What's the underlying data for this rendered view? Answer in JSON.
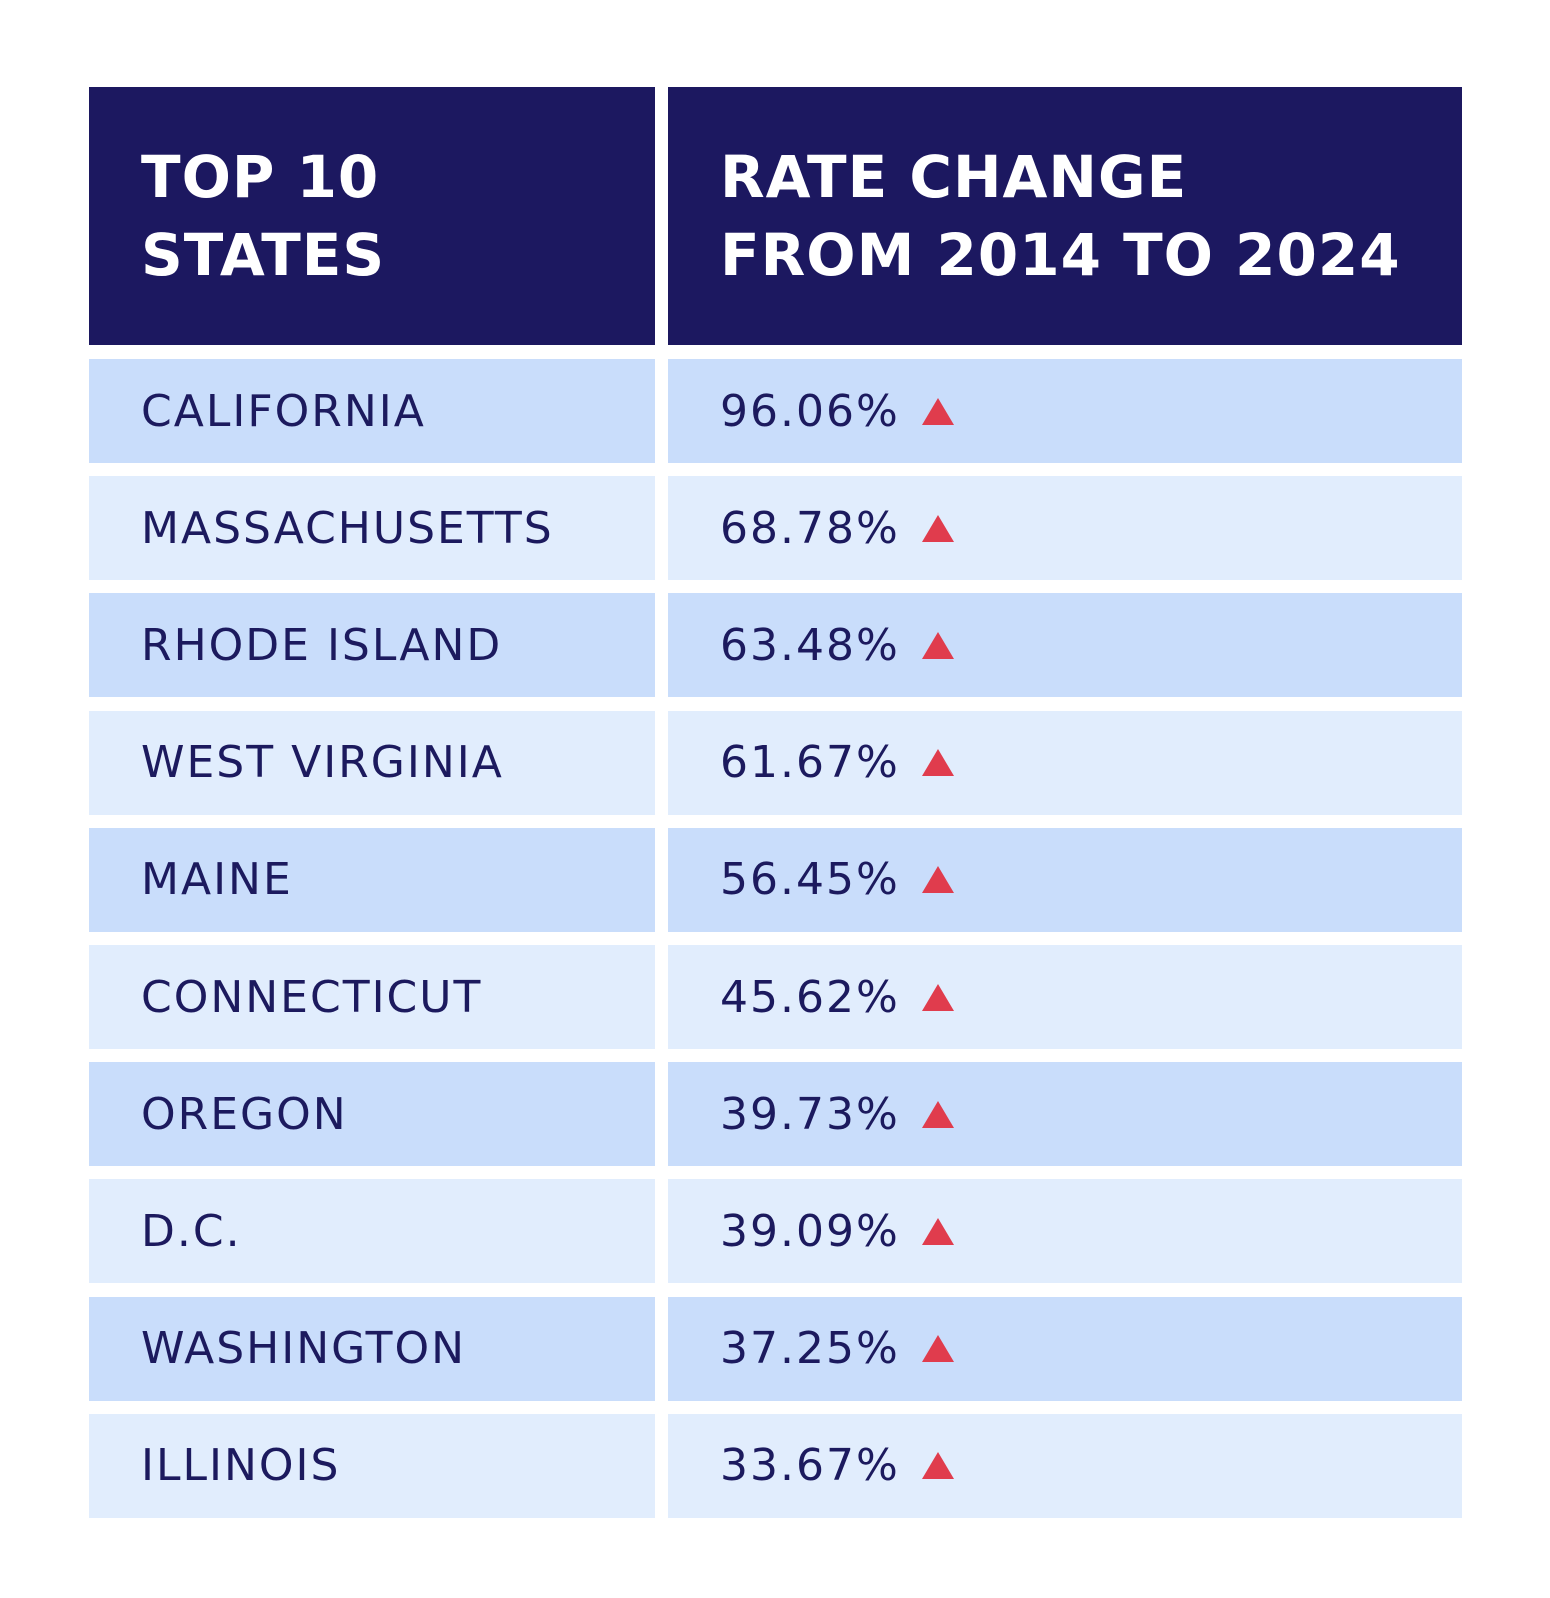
{
  "chart_data": {
    "type": "table",
    "columns": [
      "TOP 10 STATES",
      "RATE CHANGE FROM 2014 TO 2024"
    ],
    "header_lines": [
      [
        "TOP 10",
        "STATES"
      ],
      [
        "RATE CHANGE",
        "FROM 2014 TO 2024"
      ]
    ],
    "rows": [
      {
        "state": "CALIFORNIA",
        "change": "96.06%",
        "direction": "up"
      },
      {
        "state": "MASSACHUSETTS",
        "change": "68.78%",
        "direction": "up"
      },
      {
        "state": "RHODE ISLAND",
        "change": "63.48%",
        "direction": "up"
      },
      {
        "state": "WEST VIRGINIA",
        "change": "61.67%",
        "direction": "up"
      },
      {
        "state": "MAINE",
        "change": "56.45%",
        "direction": "up"
      },
      {
        "state": "CONNECTICUT",
        "change": "45.62%",
        "direction": "up"
      },
      {
        "state": "OREGON",
        "change": "39.73%",
        "direction": "up"
      },
      {
        "state": "D.C.",
        "change": "39.09%",
        "direction": "up"
      },
      {
        "state": "WASHINGTON",
        "change": "37.25%",
        "direction": "up"
      },
      {
        "state": "ILLINOIS",
        "change": "33.67%",
        "direction": "up"
      }
    ],
    "colors": {
      "header": "#1c1860",
      "row_dark": "#c9ddfb",
      "row_light": "#e1edfd",
      "text": "#1c1a5e",
      "up_arrow": "#e03c4d"
    }
  }
}
